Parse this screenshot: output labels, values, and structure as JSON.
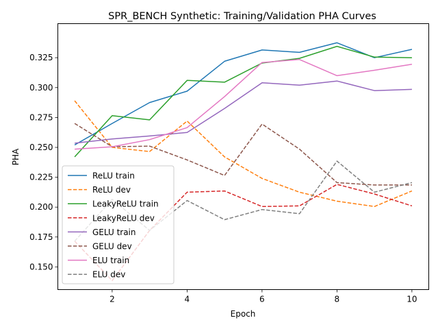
{
  "chart_data": {
    "type": "line",
    "title": "SPR_BENCH Synthetic: Training/Validation PHA Curves",
    "xlabel": "Epoch",
    "ylabel": "PHA",
    "xlim": [
      0.55,
      10.45
    ],
    "ylim": [
      0.131,
      0.3535
    ],
    "xticks": [
      2,
      4,
      6,
      8,
      10
    ],
    "yticks": [
      0.15,
      0.175,
      0.2,
      0.225,
      0.25,
      0.275,
      0.3,
      0.325
    ],
    "ytick_labels": [
      "0.150",
      "0.175",
      "0.200",
      "0.225",
      "0.250",
      "0.275",
      "0.300",
      "0.325"
    ],
    "grid": false,
    "legend_position": "lower-left",
    "x": [
      1,
      2,
      3,
      4,
      5,
      6,
      7,
      8,
      9,
      10
    ],
    "series": [
      {
        "name": "ReLU train",
        "color": "#1f77b4",
        "dash": "solid",
        "values": [
          0.252,
          0.27,
          0.2875,
          0.297,
          0.322,
          0.3315,
          0.3295,
          0.3375,
          0.325,
          0.332
        ]
      },
      {
        "name": "ReLU dev",
        "color": "#ff7f0e",
        "dash": "dashed",
        "values": [
          0.289,
          0.25,
          0.2465,
          0.272,
          0.242,
          0.224,
          0.2125,
          0.205,
          0.2005,
          0.2135
        ]
      },
      {
        "name": "LeakyReLU train",
        "color": "#2ca02c",
        "dash": "solid",
        "values": [
          0.242,
          0.2765,
          0.273,
          0.306,
          0.3045,
          0.3205,
          0.3245,
          0.3345,
          0.3255,
          0.325
        ]
      },
      {
        "name": "LeakyReLU dev",
        "color": "#d62728",
        "dash": "dashed",
        "values": [
          0.1715,
          0.1385,
          0.1805,
          0.2125,
          0.2135,
          0.2005,
          0.201,
          0.219,
          0.211,
          0.201
        ]
      },
      {
        "name": "GELU train",
        "color": "#9467bd",
        "dash": "solid",
        "values": [
          0.2535,
          0.257,
          0.2595,
          0.2625,
          0.2825,
          0.304,
          0.302,
          0.3055,
          0.2975,
          0.2985
        ]
      },
      {
        "name": "GELU dev",
        "color": "#8c564b",
        "dash": "dashed",
        "values": [
          0.27,
          0.2505,
          0.251,
          0.2395,
          0.2265,
          0.2695,
          0.2485,
          0.2205,
          0.2185,
          0.2185
        ]
      },
      {
        "name": "ELU train",
        "color": "#e377c2",
        "dash": "solid",
        "values": [
          0.2485,
          0.2505,
          0.2565,
          0.2665,
          0.2925,
          0.321,
          0.3235,
          0.31,
          0.3145,
          0.3195
        ]
      },
      {
        "name": "ELU dev",
        "color": "#7f7f7f",
        "dash": "dashed",
        "values": [
          0.1715,
          0.2065,
          0.1805,
          0.2055,
          0.1895,
          0.198,
          0.1945,
          0.2385,
          0.2125,
          0.2205
        ]
      }
    ]
  }
}
